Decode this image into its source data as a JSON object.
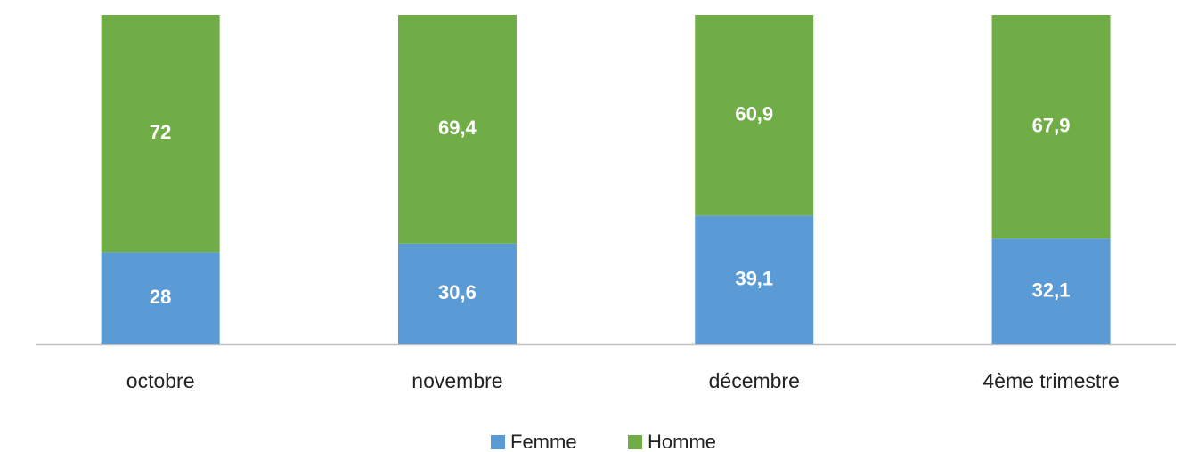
{
  "chart_data": {
    "type": "stacked_bar",
    "categories": [
      "octobre",
      "novembre",
      "décembre",
      "4ème trimestre"
    ],
    "series": [
      {
        "name": "Femme",
        "color": "#5b9bd5",
        "values": [
          28,
          30.6,
          39.1,
          32.1
        ],
        "value_labels": [
          "28",
          "30,6",
          "39,1",
          "32,1"
        ]
      },
      {
        "name": "Homme",
        "color": "#70ad47",
        "values": [
          72,
          69.4,
          60.9,
          67.9
        ],
        "value_labels": [
          "72",
          "69,4",
          "60,9",
          "67,9"
        ]
      }
    ],
    "ylim": [
      0,
      100
    ]
  }
}
